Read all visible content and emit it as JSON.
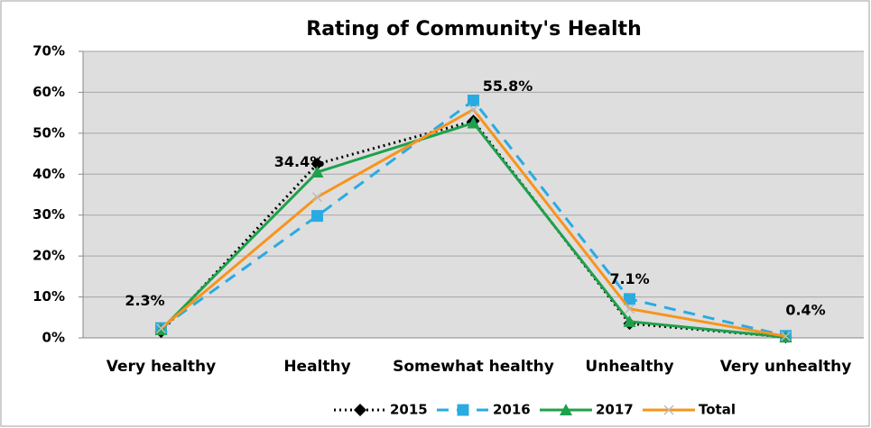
{
  "chart_data": {
    "type": "line",
    "title": "Rating of Community's Health",
    "categories": [
      "Very healthy",
      "Healthy",
      "Somewhat healthy",
      "Unhealthy",
      "Very unhealthy"
    ],
    "series": [
      {
        "name": "2015",
        "color": "#000000",
        "values": [
          1.5,
          42.5,
          53,
          3.5,
          0.2
        ]
      },
      {
        "name": "2016",
        "color": "#29abe2",
        "values": [
          2.4,
          29.8,
          58,
          9.5,
          0.5
        ]
      },
      {
        "name": "2017",
        "color": "#1ea14b",
        "values": [
          2,
          40.5,
          52.5,
          4,
          0.2
        ]
      },
      {
        "name": "Total",
        "color": "#f7941d",
        "values": [
          2.3,
          34.4,
          55.8,
          7.1,
          0.4
        ],
        "value_labels": [
          "2.3%",
          "34.4%",
          "55.8%",
          "7.1%",
          "0.4%"
        ]
      }
    ],
    "ylim": [
      0,
      70
    ],
    "yticks": [
      {
        "value": 0,
        "label": "0%"
      },
      {
        "value": 10,
        "label": "10%"
      },
      {
        "value": 20,
        "label": "20%"
      },
      {
        "value": 30,
        "label": "30%"
      },
      {
        "value": 40,
        "label": "40%"
      },
      {
        "value": 50,
        "label": "50%"
      },
      {
        "value": 60,
        "label": "60%"
      },
      {
        "value": 70,
        "label": "70%"
      }
    ],
    "grid": true,
    "legend": "bottom"
  }
}
